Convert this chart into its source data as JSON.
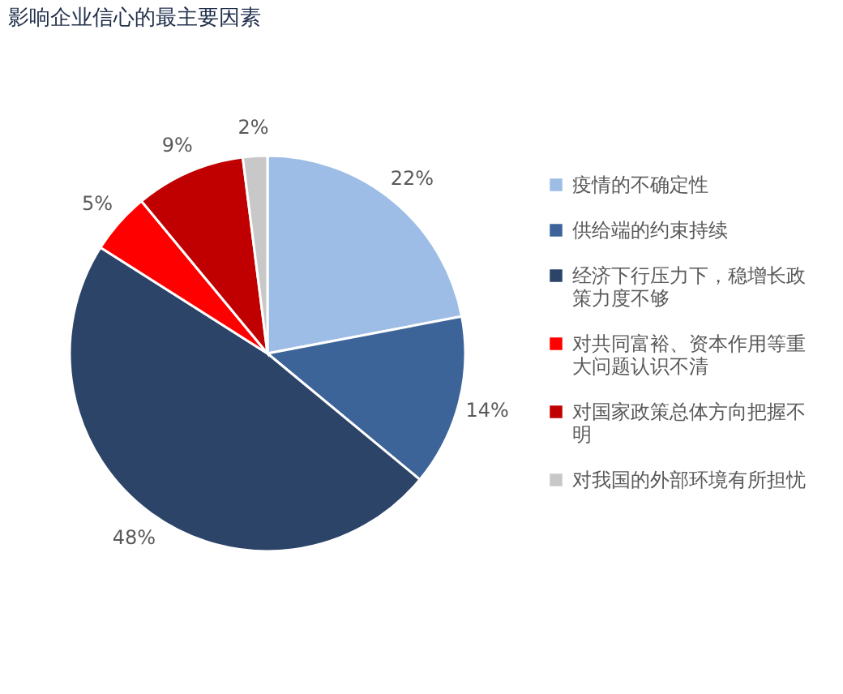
{
  "chart_data": {
    "type": "pie",
    "title": "影响企业信心的最主要因素",
    "categories": [
      "疫情的不确定性",
      "供给端的约束持续",
      "经济下行压力下，稳增长政策力度不够",
      "对共同富裕、资本作用等重大问题认识不清",
      "对国家政策总体方向把握不明",
      "对我国的外部环境有所担忧"
    ],
    "values": [
      22,
      14,
      48,
      5,
      9,
      2
    ],
    "colors": [
      "#9dbde6",
      "#3d6498",
      "#2b4468",
      "#ff0000",
      "#c00000",
      "#c8c8c8"
    ],
    "value_labels": [
      "22%",
      "14%",
      "48%",
      "5%",
      "9%",
      "2%"
    ],
    "legend": "right"
  }
}
